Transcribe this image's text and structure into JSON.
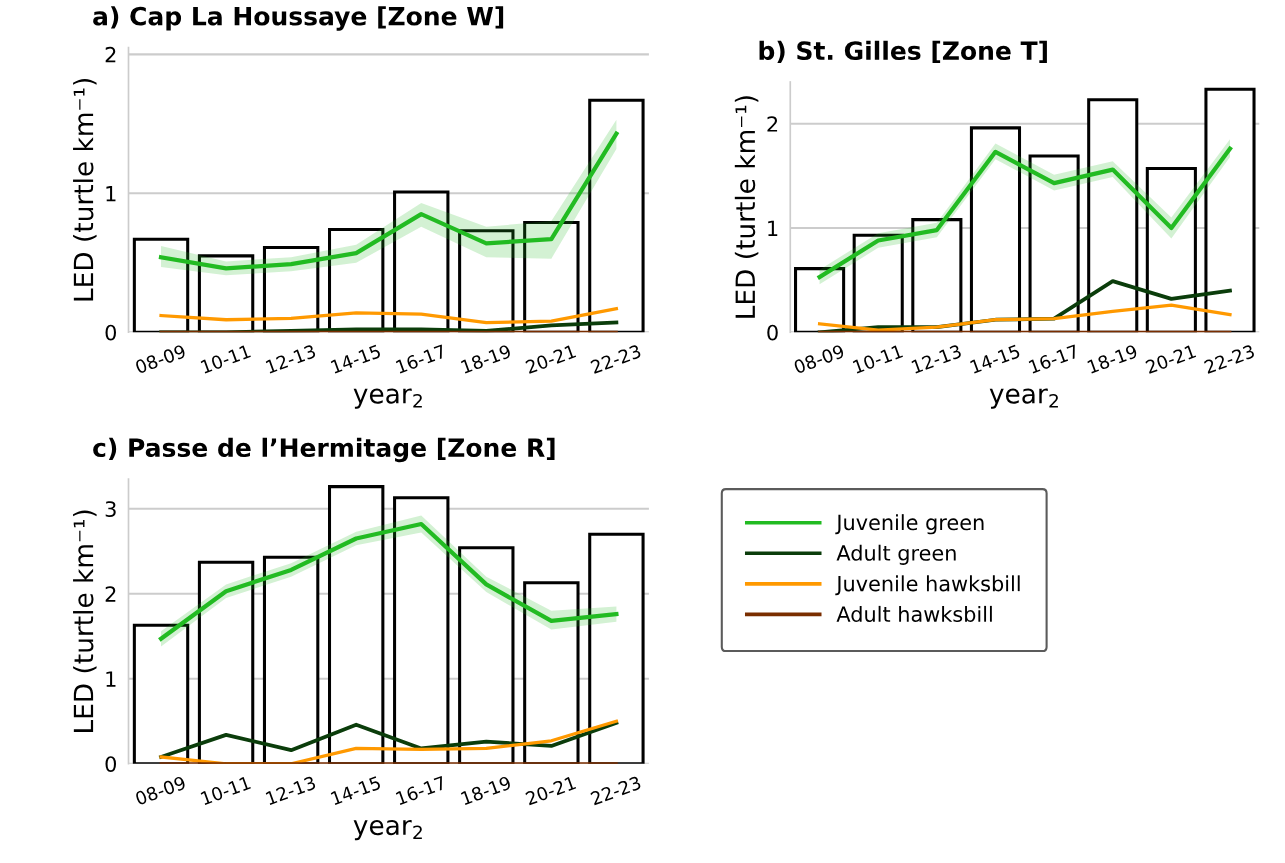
{
  "chart_data": [
    {
      "type": "bar",
      "title": "a) Cap La Houssaye [Zone W]",
      "xlabel": "year$_{2}$",
      "ylabel": "LED (turtle km⁻¹)",
      "categories": [
        "08-09",
        "10-11",
        "12-13",
        "14-15",
        "16-17",
        "18-19",
        "20-21",
        "22-23"
      ],
      "ylim": [
        0,
        2.05
      ],
      "yticks": [
        0,
        1,
        2
      ],
      "grid": "y",
      "series": [
        {
          "color": "#000000",
          "values": [
            0.67,
            0.55,
            0.61,
            0.74,
            1.01,
            0.73,
            0.79,
            1.67
          ]
        },
        {
          "type": "line",
          "color": "#22bb22",
          "values": [
            0.54,
            0.46,
            0.49,
            0.57,
            0.85,
            0.64,
            0.67,
            1.43
          ],
          "lower": [
            0.47,
            0.41,
            0.44,
            0.5,
            0.76,
            0.54,
            0.53,
            1.32
          ],
          "upper": [
            0.62,
            0.51,
            0.54,
            0.63,
            0.93,
            0.76,
            0.8,
            1.53
          ]
        },
        {
          "type": "line",
          "color": "#0b3d0b",
          "values": [
            0,
            0,
            0.01,
            0.02,
            0.02,
            0.01,
            0.05,
            0.07
          ]
        },
        {
          "type": "line",
          "color": "#ff9900",
          "values": [
            0.12,
            0.09,
            0.1,
            0.14,
            0.13,
            0.07,
            0.08,
            0.17
          ]
        },
        {
          "type": "line",
          "color": "#7a2e00",
          "values": [
            0,
            0,
            0,
            0,
            0,
            0,
            0,
            0
          ]
        }
      ]
    },
    {
      "type": "bar",
      "title": "b) St. Gilles [Zone T]",
      "xlabel": "year$_{2}$",
      "ylabel": "LED (turtle km⁻¹)",
      "categories": [
        "08-09",
        "10-11",
        "12-13",
        "14-15",
        "16-17",
        "18-19",
        "20-21",
        "22-23"
      ],
      "ylim": [
        0,
        2.4
      ],
      "yticks": [
        0,
        1,
        2
      ],
      "grid": "y",
      "series": [
        {
          "color": "#000000",
          "values": [
            0.61,
            0.93,
            1.08,
            1.96,
            1.69,
            2.23,
            1.57,
            2.33
          ]
        },
        {
          "type": "line",
          "color": "#22bb22",
          "values": [
            0.53,
            0.88,
            0.98,
            1.73,
            1.43,
            1.56,
            1.0,
            1.76
          ],
          "lower": [
            0.46,
            0.81,
            0.91,
            1.66,
            1.36,
            1.49,
            0.9,
            1.68
          ],
          "upper": [
            0.6,
            0.95,
            1.05,
            1.81,
            1.51,
            1.64,
            1.1,
            1.85
          ]
        },
        {
          "type": "line",
          "color": "#0b3d0b",
          "values": [
            0,
            0.05,
            0.05,
            0.12,
            0.13,
            0.49,
            0.32,
            0.4
          ]
        },
        {
          "type": "line",
          "color": "#ff9900",
          "values": [
            0.08,
            0.02,
            0.05,
            0.12,
            0.13,
            0.2,
            0.26,
            0.17
          ]
        },
        {
          "type": "line",
          "color": "#7a2e00",
          "values": [
            0,
            0,
            0,
            0,
            0,
            0,
            0,
            0
          ]
        }
      ]
    },
    {
      "type": "bar",
      "title": "c) Passe de l’Hermitage [Zone R]",
      "xlabel": "year$_{2}$",
      "ylabel": "LED (turtle km⁻¹)",
      "categories": [
        "08-09",
        "10-11",
        "12-13",
        "14-15",
        "16-17",
        "18-19",
        "20-21",
        "22-23"
      ],
      "ylim": [
        0,
        3.35
      ],
      "yticks": [
        0,
        1,
        2,
        3
      ],
      "grid": "y",
      "legend": "right",
      "series": [
        {
          "color": "#000000",
          "values": [
            1.63,
            2.37,
            2.43,
            3.26,
            3.13,
            2.54,
            2.13,
            2.7
          ]
        },
        {
          "type": "line",
          "name": "Juvenile green",
          "color": "#22bb22",
          "values": [
            1.47,
            2.03,
            2.28,
            2.65,
            2.82,
            2.11,
            1.68,
            1.76
          ],
          "lower": [
            1.38,
            1.95,
            2.2,
            2.57,
            2.72,
            2.02,
            1.58,
            1.67
          ],
          "upper": [
            1.56,
            2.11,
            2.36,
            2.73,
            2.92,
            2.2,
            1.8,
            1.85
          ]
        },
        {
          "type": "line",
          "name": "Adult green",
          "color": "#0b3d0b",
          "values": [
            0.08,
            0.34,
            0.16,
            0.46,
            0.18,
            0.26,
            0.21,
            0.48
          ]
        },
        {
          "type": "line",
          "name": "Juvenile hawksbill",
          "color": "#ff9900",
          "values": [
            0.08,
            0,
            0,
            0.18,
            0.17,
            0.18,
            0.27,
            0.5
          ]
        },
        {
          "type": "line",
          "name": "Adult hawksbill",
          "color": "#7a2e00",
          "values": [
            0,
            0,
            0,
            0,
            0,
            0,
            0,
            0
          ]
        }
      ]
    }
  ]
}
